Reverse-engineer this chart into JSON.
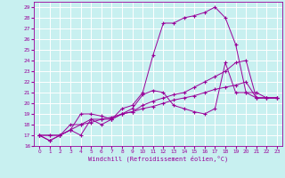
{
  "xlabel": "Windchill (Refroidissement éolien,°C)",
  "bg_color": "#c8f0f0",
  "grid_color": "#ffffff",
  "line_color": "#990099",
  "xlim": [
    -0.5,
    23.5
  ],
  "ylim": [
    16,
    29.5
  ],
  "xticks": [
    0,
    1,
    2,
    3,
    4,
    5,
    6,
    7,
    8,
    9,
    10,
    11,
    12,
    13,
    14,
    15,
    16,
    17,
    18,
    19,
    20,
    21,
    22,
    23
  ],
  "yticks": [
    16,
    17,
    18,
    19,
    20,
    21,
    22,
    23,
    24,
    25,
    26,
    27,
    28,
    29
  ],
  "series": [
    [
      17.0,
      16.5,
      17.0,
      17.5,
      17.0,
      18.5,
      18.0,
      18.5,
      19.5,
      19.8,
      21.0,
      24.5,
      27.5,
      27.5,
      28.0,
      28.2,
      28.5,
      29.0,
      28.0,
      25.5,
      21.0,
      21.0,
      20.5,
      20.5
    ],
    [
      17.0,
      16.5,
      17.0,
      17.5,
      19.0,
      19.0,
      18.8,
      18.5,
      19.0,
      19.5,
      20.8,
      21.2,
      21.0,
      19.8,
      19.5,
      19.2,
      19.0,
      19.5,
      23.8,
      21.0,
      21.0,
      20.5,
      20.5,
      20.5
    ],
    [
      17.0,
      17.0,
      17.0,
      18.0,
      18.0,
      18.5,
      18.5,
      18.5,
      19.0,
      19.2,
      19.8,
      20.2,
      20.5,
      20.8,
      21.0,
      21.5,
      22.0,
      22.5,
      23.0,
      23.8,
      24.0,
      20.5,
      20.5,
      20.5
    ],
    [
      17.0,
      17.0,
      17.0,
      17.5,
      18.0,
      18.2,
      18.5,
      18.7,
      19.0,
      19.2,
      19.5,
      19.7,
      20.0,
      20.3,
      20.5,
      20.7,
      21.0,
      21.3,
      21.5,
      21.7,
      22.0,
      20.5,
      20.5,
      20.5
    ]
  ]
}
